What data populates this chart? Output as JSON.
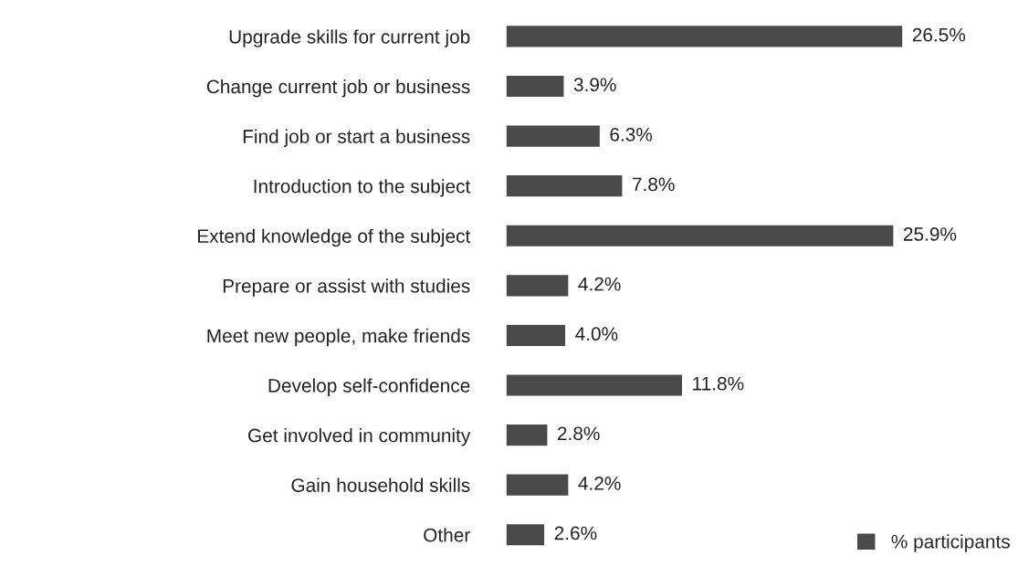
{
  "chart_data": {
    "type": "bar",
    "orientation": "horizontal",
    "categories": [
      "Upgrade skills for current job",
      "Change current job or business",
      "Find job or start a business",
      "Introduction to the subject",
      "Extend knowledge of the subject",
      "Prepare or assist with studies",
      "Meet new people, make friends",
      "Develop self-confidence",
      "Get involved in community",
      "Gain household skills",
      "Other"
    ],
    "series": [
      {
        "name": "% participants",
        "color": "#4a4a4a",
        "values": [
          26.5,
          3.9,
          6.3,
          7.8,
          25.9,
          4.2,
          4.0,
          11.8,
          2.8,
          4.2,
          2.6
        ],
        "value_labels": [
          "26.5%",
          "3.9%",
          "6.3%",
          "7.8%",
          "25.9%",
          "4.2%",
          "4.0%",
          "11.8%",
          "2.8%",
          "4.2%",
          "2.6%"
        ]
      }
    ],
    "legend": "bottom right",
    "grid": false
  }
}
